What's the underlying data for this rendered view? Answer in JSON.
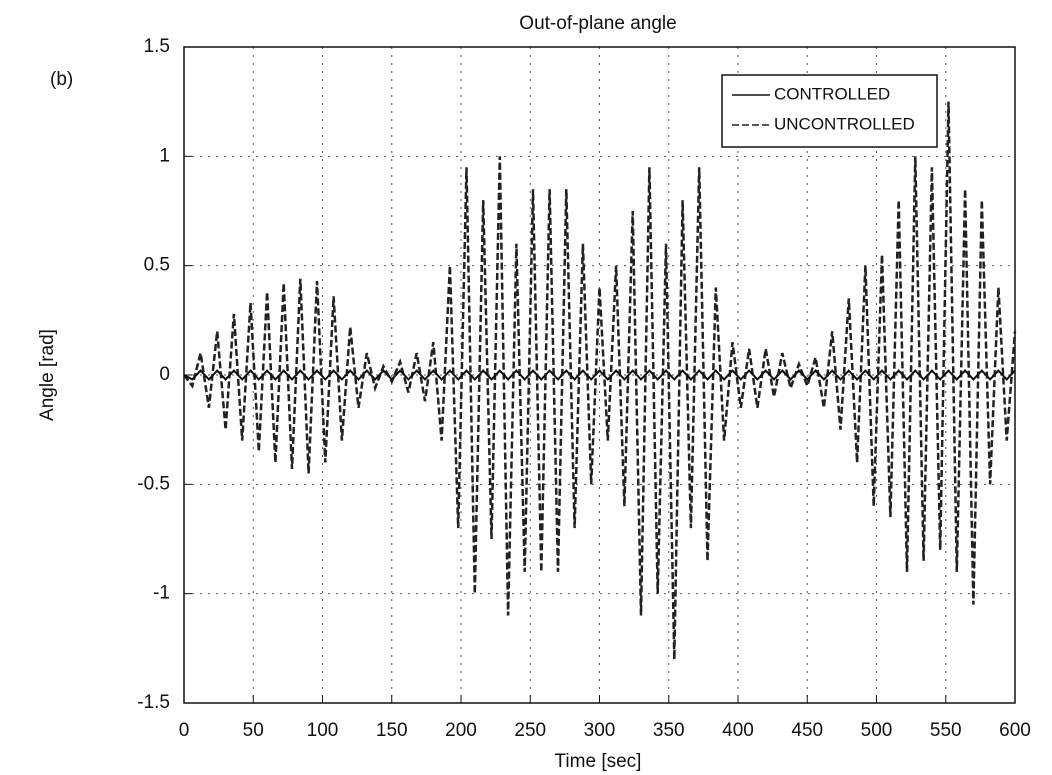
{
  "chart_data": {
    "type": "line",
    "panel_label": "(b)",
    "title": "Out-of-plane angle",
    "x_label": "Time [sec]",
    "y_label": "Angle [rad]",
    "x": [
      0,
      6,
      12,
      18,
      24,
      30,
      36,
      42,
      48,
      54,
      60,
      66,
      72,
      78,
      84,
      90,
      96,
      102,
      108,
      114,
      120,
      126,
      132,
      138,
      144,
      150,
      156,
      162,
      168,
      174,
      180,
      186,
      192,
      198,
      204,
      210,
      216,
      222,
      228,
      234,
      240,
      246,
      252,
      258,
      264,
      270,
      276,
      282,
      288,
      294,
      300,
      306,
      312,
      318,
      324,
      330,
      336,
      342,
      348,
      354,
      360,
      366,
      372,
      378,
      384,
      390,
      396,
      402,
      408,
      414,
      420,
      426,
      432,
      438,
      444,
      450,
      456,
      462,
      468,
      474,
      480,
      486,
      492,
      498,
      504,
      510,
      516,
      522,
      528,
      534,
      540,
      546,
      552,
      558,
      564,
      570,
      576,
      582,
      588,
      594,
      600
    ],
    "series": [
      {
        "name": "CONTROLLED",
        "color": "#111111",
        "dash": "solid",
        "values": [
          0,
          -0.02,
          0.02,
          -0.02,
          0.02,
          -0.02,
          0.02,
          -0.02,
          0.02,
          -0.02,
          0.02,
          -0.02,
          0.02,
          -0.02,
          0.02,
          -0.02,
          0.02,
          -0.02,
          0.02,
          -0.02,
          0.02,
          -0.02,
          0.02,
          -0.02,
          0.02,
          -0.02,
          0.02,
          -0.02,
          0.02,
          -0.02,
          0.02,
          -0.02,
          0.02,
          -0.02,
          0.02,
          -0.02,
          0.02,
          -0.02,
          0.02,
          -0.02,
          0.02,
          -0.02,
          0.02,
          -0.02,
          0.02,
          -0.02,
          0.02,
          -0.02,
          0.02,
          -0.02,
          0.02,
          -0.02,
          0.02,
          -0.02,
          0.02,
          -0.02,
          0.02,
          -0.02,
          0.02,
          -0.02,
          0.02,
          -0.02,
          0.02,
          -0.02,
          0.02,
          -0.02,
          0.02,
          -0.02,
          0.02,
          -0.02,
          0.02,
          -0.02,
          0.02,
          -0.02,
          0.02,
          -0.02,
          0.02,
          -0.02,
          0.02,
          -0.02,
          0.02,
          -0.02,
          0.02,
          -0.02,
          0.02,
          -0.02,
          0.02,
          -0.02,
          0.02,
          -0.02,
          0.02,
          -0.02,
          0.02,
          -0.02,
          0.02,
          -0.02,
          0.02,
          -0.02,
          0.02,
          -0.02,
          0.02
        ]
      },
      {
        "name": "UNCONTROLLED",
        "color": "#222222",
        "dash": "dashed",
        "values": [
          0,
          -0.05,
          0.1,
          -0.15,
          0.2,
          -0.25,
          0.28,
          -0.3,
          0.33,
          -0.35,
          0.38,
          -0.4,
          0.42,
          -0.43,
          0.44,
          -0.45,
          0.43,
          -0.4,
          0.36,
          -0.3,
          0.22,
          -0.15,
          0.1,
          -0.06,
          0.04,
          -0.03,
          0.06,
          -0.08,
          0.1,
          -0.12,
          0.15,
          -0.3,
          0.5,
          -0.7,
          0.95,
          -1.0,
          0.8,
          -0.75,
          1.0,
          -1.1,
          0.6,
          -0.9,
          0.85,
          -0.9,
          0.85,
          -0.9,
          0.85,
          -0.7,
          0.6,
          -0.5,
          0.4,
          -0.3,
          0.5,
          -0.6,
          0.75,
          -1.1,
          0.95,
          -1.0,
          0.6,
          -1.3,
          0.8,
          -0.7,
          0.95,
          -0.85,
          0.4,
          -0.3,
          0.15,
          -0.15,
          0.12,
          -0.15,
          0.12,
          -0.1,
          0.1,
          -0.06,
          0.05,
          -0.05,
          0.08,
          -0.15,
          0.2,
          -0.25,
          0.35,
          -0.4,
          0.5,
          -0.6,
          0.55,
          -0.65,
          0.8,
          -0.9,
          1.0,
          -0.85,
          0.95,
          -0.8,
          1.25,
          -0.9,
          0.85,
          -1.05,
          0.8,
          -0.5,
          0.4,
          -0.3,
          0.2
        ]
      }
    ],
    "xlim": [
      0,
      600
    ],
    "ylim": [
      -1.5,
      1.5
    ],
    "xticks": [
      0,
      50,
      100,
      150,
      200,
      250,
      300,
      350,
      400,
      450,
      500,
      550,
      600
    ],
    "yticks": [
      -1.5,
      -1,
      -0.5,
      0,
      0.5,
      1,
      1.5
    ],
    "grid": true,
    "legend": "upper right"
  }
}
